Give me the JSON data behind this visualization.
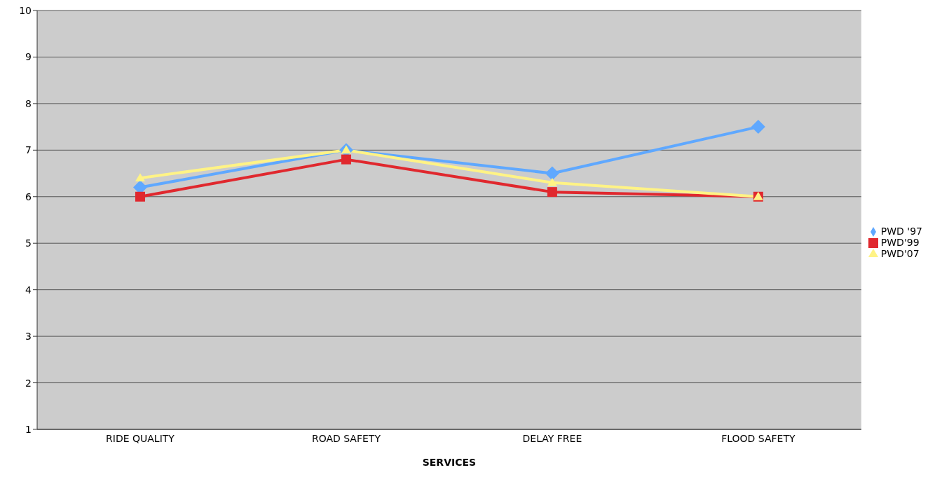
{
  "chart_data": {
    "type": "line",
    "xlabel": "SERVICES",
    "categories": [
      "RIDE QUALITY",
      "ROAD SAFETY",
      "DELAY FREE",
      "FLOOD SAFETY"
    ],
    "series": [
      {
        "name": "PWD '97",
        "color": "#5fa8ff",
        "marker": "diamond",
        "values": [
          6.2,
          7.0,
          6.5,
          7.5
        ]
      },
      {
        "name": "PWD'99",
        "color": "#e0282e",
        "marker": "square",
        "values": [
          6.0,
          6.8,
          6.1,
          6.0
        ]
      },
      {
        "name": "PWD'07",
        "color": "#fff385",
        "marker": "triangle",
        "values": [
          6.4,
          7.0,
          6.3,
          6.0
        ]
      }
    ],
    "ylim": [
      1,
      10
    ],
    "yticks": [
      1,
      2,
      3,
      4,
      5,
      6,
      7,
      8,
      9,
      10
    ],
    "grid": "y",
    "legend": "right"
  }
}
